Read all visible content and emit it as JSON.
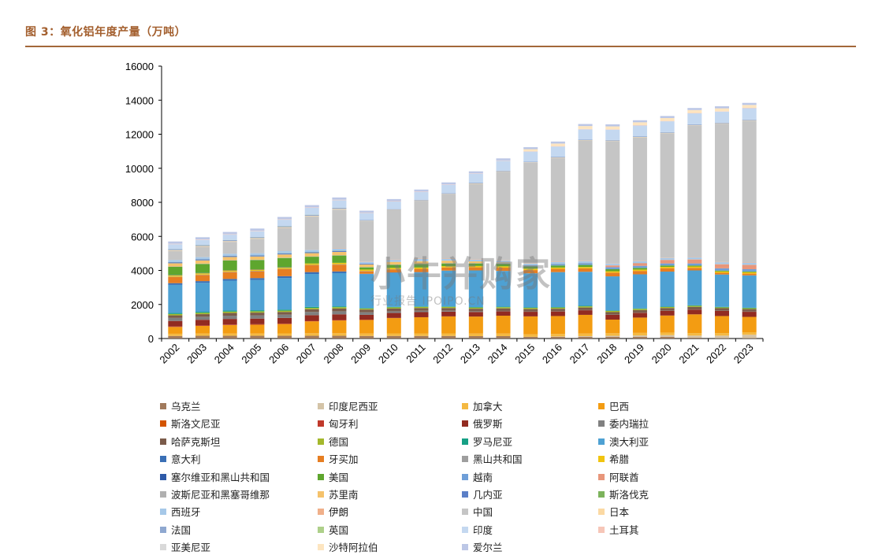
{
  "header": {
    "title": "图 3：氧化铝年度产量（万吨）"
  },
  "watermark": {
    "main": "小牛并购家",
    "sub": "行业报告 IPOIPO.CN"
  },
  "chart_data": {
    "type": "stacked-bar",
    "title": "",
    "xlabel": "",
    "ylabel": "",
    "ylim": [
      0,
      16000
    ],
    "yticks": [
      0,
      2000,
      4000,
      6000,
      8000,
      10000,
      12000,
      14000,
      16000
    ],
    "grid": false,
    "legend_position": "bottom",
    "categories": [
      "2002",
      "2003",
      "2004",
      "2005",
      "2006",
      "2007",
      "2008",
      "2009",
      "2010",
      "2011",
      "2012",
      "2013",
      "2014",
      "2015",
      "2016",
      "2017",
      "2018",
      "2019",
      "2020",
      "2021",
      "2022",
      "2023"
    ],
    "series": [
      {
        "name": "乌克兰",
        "color": "#a17a5c",
        "values": [
          150,
          160,
          160,
          160,
          160,
          160,
          160,
          150,
          150,
          150,
          150,
          140,
          140,
          100,
          100,
          100,
          100,
          100,
          100,
          50,
          20,
          20
        ]
      },
      {
        "name": "印度尼西亚",
        "color": "#d4c4a8",
        "values": [
          0,
          0,
          0,
          0,
          0,
          0,
          0,
          0,
          0,
          0,
          0,
          0,
          0,
          0,
          20,
          40,
          60,
          80,
          100,
          120,
          150,
          200
        ]
      },
      {
        "name": "加拿大",
        "color": "#f4b942",
        "values": [
          130,
          130,
          130,
          130,
          140,
          150,
          150,
          140,
          150,
          150,
          150,
          150,
          150,
          150,
          150,
          150,
          150,
          150,
          150,
          150,
          150,
          150
        ]
      },
      {
        "name": "巴西",
        "color": "#f39c12",
        "values": [
          400,
          450,
          500,
          520,
          550,
          700,
          750,
          800,
          900,
          950,
          1000,
          1000,
          1050,
          1050,
          1050,
          1100,
          800,
          900,
          1000,
          1100,
          1000,
          900
        ]
      },
      {
        "name": "斯洛文尼亚",
        "color": "#d35400",
        "values": [
          0,
          0,
          0,
          0,
          0,
          0,
          0,
          0,
          0,
          0,
          0,
          0,
          0,
          0,
          0,
          0,
          0,
          0,
          0,
          0,
          0,
          0
        ]
      },
      {
        "name": "匈牙利",
        "color": "#c0392b",
        "values": [
          30,
          30,
          30,
          30,
          30,
          30,
          30,
          20,
          10,
          0,
          0,
          0,
          0,
          0,
          0,
          0,
          0,
          0,
          0,
          0,
          0,
          0
        ]
      },
      {
        "name": "俄罗斯",
        "color": "#922b21",
        "values": [
          320,
          330,
          330,
          330,
          330,
          330,
          330,
          280,
          290,
          300,
          280,
          270,
          260,
          270,
          270,
          270,
          280,
          280,
          280,
          280,
          300,
          300
        ]
      },
      {
        "name": "委内瑞拉",
        "color": "#808080",
        "values": [
          180,
          180,
          190,
          190,
          190,
          190,
          180,
          150,
          100,
          80,
          50,
          40,
          20,
          10,
          10,
          10,
          10,
          10,
          10,
          10,
          10,
          10
        ]
      },
      {
        "name": "哈萨克斯坦",
        "color": "#7b5b4a",
        "values": [
          150,
          150,
          160,
          160,
          160,
          160,
          160,
          160,
          160,
          160,
          160,
          150,
          150,
          150,
          150,
          150,
          150,
          150,
          150,
          150,
          150,
          150
        ]
      },
      {
        "name": "德国",
        "color": "#a4b82c",
        "values": [
          80,
          80,
          80,
          80,
          80,
          80,
          80,
          60,
          70,
          70,
          70,
          70,
          70,
          70,
          70,
          70,
          70,
          70,
          60,
          60,
          50,
          50
        ]
      },
      {
        "name": "罗马尼亚",
        "color": "#16a085",
        "values": [
          60,
          60,
          60,
          60,
          60,
          60,
          50,
          30,
          30,
          30,
          30,
          30,
          30,
          30,
          30,
          30,
          30,
          30,
          30,
          30,
          30,
          30
        ]
      },
      {
        "name": "澳大利亚",
        "color": "#4ea1d3",
        "values": [
          1650,
          1700,
          1760,
          1780,
          1850,
          1930,
          1950,
          1990,
          2000,
          1990,
          2100,
          2150,
          2100,
          2000,
          2050,
          2000,
          2000,
          2000,
          2050,
          2050,
          1900,
          1900
        ]
      },
      {
        "name": "意大利",
        "color": "#3a6fb5",
        "values": [
          100,
          100,
          100,
          110,
          110,
          110,
          100,
          20,
          20,
          20,
          0,
          0,
          0,
          0,
          0,
          0,
          0,
          0,
          0,
          0,
          0,
          0
        ]
      },
      {
        "name": "牙买加",
        "color": "#e67e22",
        "values": [
          360,
          360,
          400,
          400,
          410,
          400,
          400,
          150,
          180,
          190,
          180,
          180,
          190,
          190,
          190,
          200,
          220,
          200,
          200,
          150,
          100,
          100
        ]
      },
      {
        "name": "黑山共和国",
        "color": "#9e9e9e",
        "values": [
          25,
          25,
          25,
          25,
          25,
          25,
          25,
          20,
          10,
          0,
          0,
          0,
          0,
          0,
          0,
          0,
          0,
          0,
          0,
          0,
          0,
          0
        ]
      },
      {
        "name": "希腊",
        "color": "#f1c40f",
        "values": [
          75,
          75,
          75,
          75,
          75,
          80,
          80,
          80,
          80,
          80,
          80,
          80,
          80,
          80,
          80,
          80,
          80,
          80,
          80,
          80,
          80,
          80
        ]
      },
      {
        "name": "塞尔维亚和黑山共和国",
        "color": "#2e5aa8",
        "values": [
          20,
          20,
          20,
          20,
          20,
          0,
          0,
          0,
          0,
          0,
          0,
          0,
          0,
          0,
          0,
          0,
          0,
          0,
          0,
          0,
          0,
          0
        ]
      },
      {
        "name": "美国",
        "color": "#5ea62e",
        "values": [
          480,
          530,
          560,
          540,
          540,
          400,
          430,
          130,
          180,
          200,
          160,
          150,
          150,
          130,
          120,
          120,
          120,
          100,
          80,
          60,
          50,
          50
        ]
      },
      {
        "name": "越南",
        "color": "#6f9fd8",
        "values": [
          0,
          0,
          0,
          0,
          0,
          0,
          0,
          0,
          0,
          0,
          0,
          0,
          20,
          50,
          80,
          100,
          120,
          120,
          120,
          120,
          130,
          130
        ]
      },
      {
        "name": "阿联酋",
        "color": "#e8967a",
        "values": [
          0,
          0,
          0,
          0,
          0,
          0,
          0,
          0,
          0,
          0,
          0,
          0,
          0,
          0,
          0,
          0,
          100,
          150,
          200,
          230,
          240,
          250
        ]
      },
      {
        "name": "波斯尼亚和黑塞哥维那",
        "color": "#b0b0b0",
        "values": [
          20,
          20,
          20,
          20,
          20,
          20,
          20,
          20,
          20,
          20,
          20,
          20,
          20,
          20,
          20,
          20,
          20,
          20,
          20,
          20,
          20,
          20
        ]
      },
      {
        "name": "苏里南",
        "color": "#f5c26b",
        "values": [
          190,
          190,
          190,
          190,
          190,
          190,
          190,
          150,
          150,
          150,
          140,
          100,
          40,
          0,
          0,
          0,
          0,
          0,
          0,
          0,
          0,
          0
        ]
      },
      {
        "name": "几内亚",
        "color": "#5b7fc7",
        "values": [
          60,
          60,
          60,
          60,
          60,
          60,
          60,
          50,
          0,
          0,
          0,
          0,
          0,
          0,
          0,
          0,
          0,
          0,
          0,
          0,
          0,
          0
        ]
      },
      {
        "name": "斯洛伐克",
        "color": "#7cb35c",
        "values": [
          10,
          10,
          10,
          10,
          10,
          10,
          10,
          0,
          0,
          0,
          0,
          0,
          0,
          0,
          0,
          0,
          0,
          0,
          0,
          0,
          0,
          0
        ]
      },
      {
        "name": "西班牙",
        "color": "#a6c8e8",
        "values": [
          120,
          120,
          120,
          120,
          120,
          120,
          120,
          100,
          120,
          130,
          100,
          100,
          100,
          100,
          100,
          100,
          100,
          100,
          100,
          100,
          100,
          100
        ]
      },
      {
        "name": "伊朗",
        "color": "#f0b08a",
        "values": [
          0,
          0,
          0,
          0,
          0,
          10,
          20,
          20,
          20,
          20,
          20,
          20,
          20,
          20,
          20,
          20,
          20,
          20,
          20,
          20,
          20,
          20
        ]
      },
      {
        "name": "中国",
        "color": "#c5c5c5",
        "values": [
          540,
          610,
          700,
          850,
          1370,
          1950,
          2280,
          2380,
          2900,
          3400,
          3780,
          4440,
          5210,
          5910,
          6110,
          7070,
          7170,
          7260,
          7310,
          7740,
          8120,
          8340
        ]
      },
      {
        "name": "日本",
        "color": "#fbd9a3",
        "values": [
          40,
          40,
          40,
          40,
          40,
          40,
          40,
          20,
          20,
          20,
          20,
          20,
          20,
          20,
          20,
          20,
          20,
          20,
          20,
          20,
          20,
          20
        ]
      },
      {
        "name": "法国",
        "color": "#8fa8d0",
        "values": [
          60,
          60,
          60,
          60,
          60,
          60,
          60,
          40,
          40,
          40,
          40,
          40,
          40,
          40,
          40,
          40,
          40,
          40,
          40,
          40,
          40,
          40
        ]
      },
      {
        "name": "英国",
        "color": "#aed08a",
        "values": [
          10,
          10,
          10,
          10,
          10,
          10,
          10,
          0,
          0,
          0,
          0,
          0,
          0,
          0,
          0,
          0,
          0,
          0,
          0,
          0,
          0,
          0
        ]
      },
      {
        "name": "印度",
        "color": "#c4d8f0",
        "values": [
          280,
          290,
          310,
          330,
          370,
          400,
          440,
          420,
          450,
          460,
          500,
          530,
          580,
          590,
          600,
          600,
          610,
          630,
          640,
          650,
          650,
          670
        ]
      },
      {
        "name": "土耳其",
        "color": "#f6c6b8",
        "values": [
          20,
          20,
          20,
          20,
          20,
          20,
          20,
          20,
          20,
          20,
          20,
          20,
          20,
          20,
          20,
          20,
          20,
          20,
          20,
          20,
          20,
          20
        ]
      },
      {
        "name": "亚美尼亚",
        "color": "#d9d9d9",
        "values": [
          10,
          10,
          10,
          10,
          10,
          10,
          10,
          0,
          0,
          0,
          0,
          0,
          0,
          0,
          0,
          0,
          0,
          0,
          0,
          0,
          0,
          0
        ]
      },
      {
        "name": "沙特阿拉伯",
        "color": "#fde5c0",
        "values": [
          0,
          0,
          0,
          0,
          0,
          0,
          0,
          0,
          0,
          0,
          0,
          0,
          0,
          120,
          150,
          170,
          170,
          170,
          170,
          170,
          170,
          170
        ]
      },
      {
        "name": "爱尔兰",
        "color": "#bcc7e6",
        "values": [
          130,
          130,
          130,
          130,
          130,
          130,
          130,
          110,
          120,
          120,
          120,
          120,
          120,
          120,
          120,
          120,
          120,
          120,
          120,
          120,
          120,
          120
        ]
      }
    ]
  }
}
